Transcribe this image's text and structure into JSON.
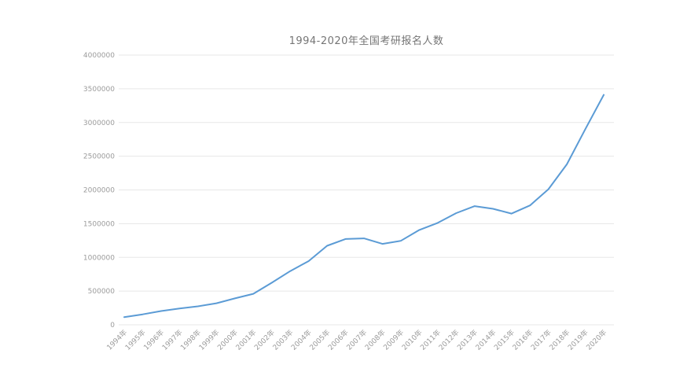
{
  "page": {
    "background_color": "#ffffff"
  },
  "chart_data": {
    "type": "line",
    "title": "1994-2020年全国考研报名人数",
    "categories": [
      "1994年",
      "1995年",
      "1996年",
      "1997年",
      "1998年",
      "1999年",
      "2000年",
      "2001年",
      "2002年",
      "2003年",
      "2004年",
      "2005年",
      "2006年",
      "2007年",
      "2008年",
      "2009年",
      "2010年",
      "2011年",
      "2012年",
      "2013年",
      "2014年",
      "2015年",
      "2016年",
      "2017年",
      "2018年",
      "2019年",
      "2020年"
    ],
    "values": [
      114000,
      155000,
      204000,
      242000,
      274000,
      319000,
      392000,
      460000,
      624000,
      797000,
      945000,
      1172000,
      1272000,
      1282000,
      1200000,
      1246000,
      1406000,
      1511000,
      1656000,
      1760000,
      1720000,
      1649000,
      1770000,
      2010000,
      2380000,
      2900000,
      3410000
    ],
    "xlabel": "",
    "ylabel": "",
    "ylim": [
      0,
      4000000
    ],
    "ytick_step": 500000,
    "ytick_labels": [
      "0",
      "500000",
      "1000000",
      "1500000",
      "2000000",
      "2500000",
      "3000000",
      "3500000",
      "4000000"
    ],
    "grid": true,
    "legend": false,
    "markers": false,
    "x_labels_rotated_degrees": 45,
    "line_color": "#5b9bd5",
    "grid_color": "#e7e7e7",
    "axis_label_color": "#9b9b9b",
    "title_color": "#757575"
  }
}
